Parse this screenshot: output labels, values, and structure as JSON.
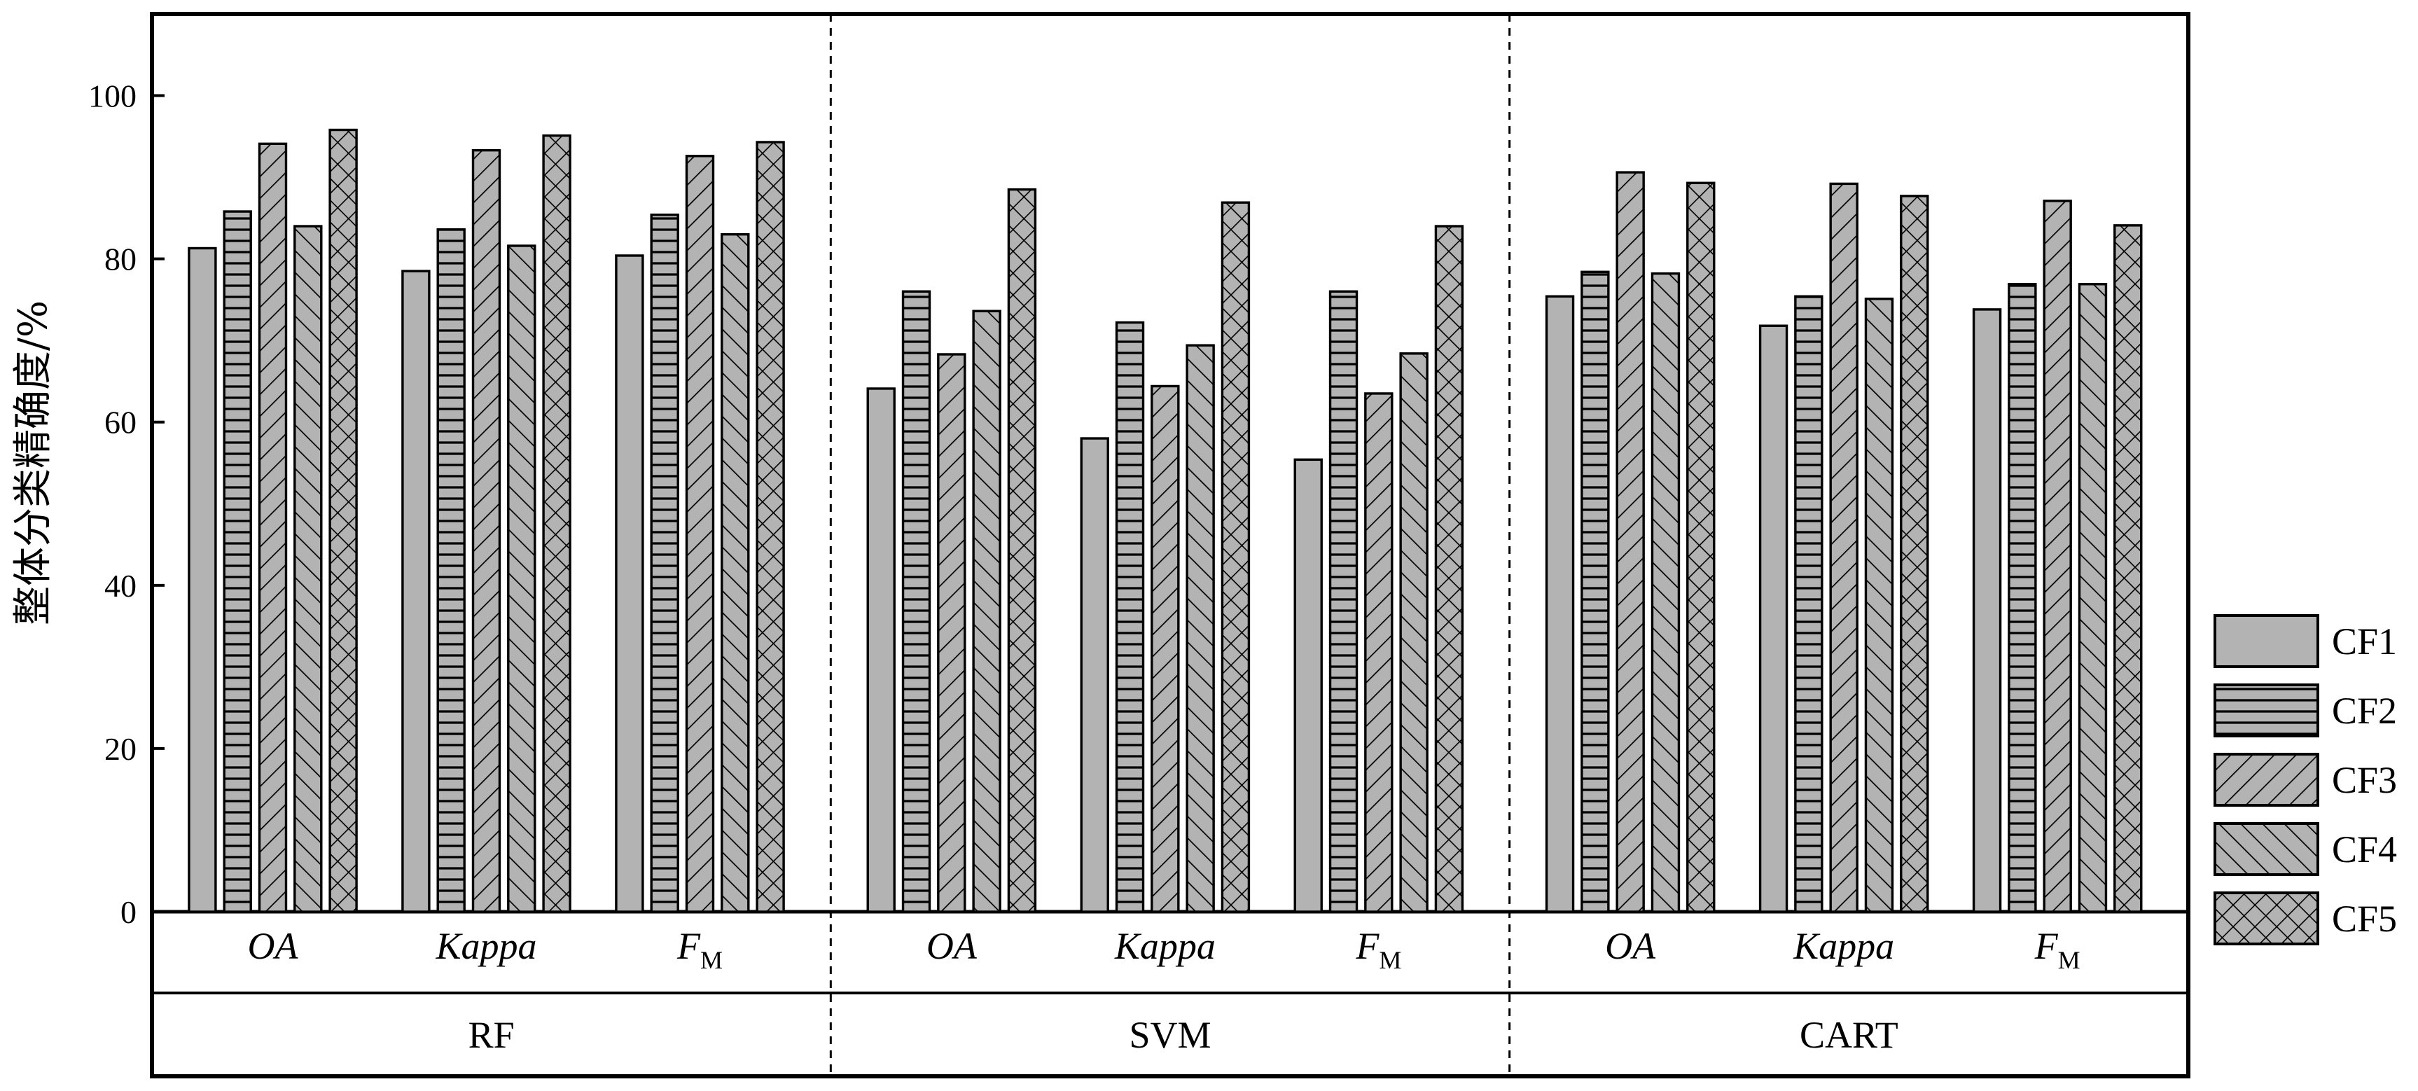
{
  "chart_data": {
    "type": "bar",
    "title": "",
    "xlabel": "",
    "ylabel": "整体分类精确度/%",
    "ylim": [
      0,
      110
    ],
    "yticks": [
      0,
      20,
      40,
      60,
      80,
      100
    ],
    "grid": false,
    "legend_position": "right",
    "groups": [
      {
        "name": "RF",
        "metrics": [
          {
            "name": "OA",
            "sub": "",
            "values": [
              81.3,
              85.8,
              94.1,
              84.0,
              95.8
            ]
          },
          {
            "name": "Kappa",
            "sub": "",
            "values": [
              78.5,
              83.6,
              93.3,
              81.6,
              95.1
            ]
          },
          {
            "name": "F",
            "sub": "M",
            "values": [
              80.4,
              85.4,
              92.6,
              83.0,
              94.3
            ]
          }
        ]
      },
      {
        "name": "SVM",
        "metrics": [
          {
            "name": "OA",
            "sub": "",
            "values": [
              64.1,
              76.0,
              68.3,
              73.6,
              88.5
            ]
          },
          {
            "name": "Kappa",
            "sub": "",
            "values": [
              58.0,
              72.2,
              64.4,
              69.4,
              86.9
            ]
          },
          {
            "name": "F",
            "sub": "M",
            "values": [
              55.4,
              76.0,
              63.5,
              68.4,
              84.0
            ]
          }
        ]
      },
      {
        "name": "CART",
        "metrics": [
          {
            "name": "OA",
            "sub": "",
            "values": [
              75.4,
              78.4,
              90.6,
              78.2,
              89.3
            ]
          },
          {
            "name": "Kappa",
            "sub": "",
            "values": [
              71.8,
              75.4,
              89.2,
              75.1,
              87.7
            ]
          },
          {
            "name": "F",
            "sub": "M",
            "values": [
              73.8,
              76.9,
              87.1,
              76.9,
              84.1
            ]
          }
        ]
      }
    ],
    "series": [
      {
        "name": "CF1",
        "pattern": "solid"
      },
      {
        "name": "CF2",
        "pattern": "horizontal"
      },
      {
        "name": "CF3",
        "pattern": "diagonal-up"
      },
      {
        "name": "CF4",
        "pattern": "diagonal-down"
      },
      {
        "name": "CF5",
        "pattern": "crosshatch"
      }
    ],
    "colors": {
      "bar_fill": "#b3b3b3",
      "stroke": "#000000"
    }
  }
}
